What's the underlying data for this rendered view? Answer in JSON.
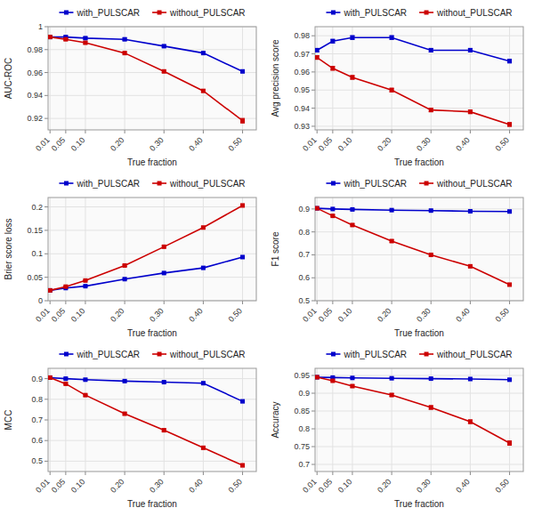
{
  "chart_data": [
    {
      "type": "line",
      "xlabel": "True fraction",
      "ylabel": "AUC-ROC",
      "x": [
        0.01,
        0.05,
        0.1,
        0.2,
        0.3,
        0.4,
        0.5
      ],
      "xlim": [
        0.005,
        0.535
      ],
      "xticks": [
        0.01,
        0.05,
        {
          "value": 0.1,
          "label": "0.10"
        },
        {
          "value": 0.2,
          "label": "0.20"
        },
        {
          "value": 0.3,
          "label": "0.30"
        },
        {
          "value": 0.4,
          "label": "0.40"
        },
        {
          "value": 0.5,
          "label": "0.50"
        }
      ],
      "ylim": [
        0.91,
        1.0
      ],
      "yticks": [
        0.92,
        0.94,
        0.96,
        0.98,
        1
      ],
      "grid": true,
      "legend": "top",
      "series": [
        {
          "name": "with_PULSCAR",
          "color": "#0000cc",
          "marker": "square",
          "values": [
            0.991,
            0.991,
            0.99,
            0.989,
            0.983,
            0.977,
            0.961
          ],
          "errors": [
            0.001,
            0.001,
            0.001,
            0.001,
            0.001,
            0.001,
            0.001
          ]
        },
        {
          "name": "without_PULSCAR",
          "color": "#cc0000",
          "marker": "square",
          "values": [
            0.991,
            0.989,
            0.986,
            0.977,
            0.961,
            0.944,
            0.918
          ],
          "errors": [
            0.001,
            0.001,
            0.001,
            0.001,
            0.001,
            0.001,
            0.002
          ]
        }
      ]
    },
    {
      "type": "line",
      "xlabel": "True fraction",
      "ylabel": "Avg precision score",
      "x": [
        0.01,
        0.05,
        0.1,
        0.2,
        0.3,
        0.4,
        0.5
      ],
      "xlim": [
        0.005,
        0.535
      ],
      "xticks": [
        0.01,
        0.05,
        {
          "value": 0.1,
          "label": "0.10"
        },
        {
          "value": 0.2,
          "label": "0.20"
        },
        {
          "value": 0.3,
          "label": "0.30"
        },
        {
          "value": 0.4,
          "label": "0.40"
        },
        {
          "value": 0.5,
          "label": "0.50"
        }
      ],
      "ylim": [
        0.928,
        0.985
      ],
      "yticks": [
        0.93,
        0.94,
        0.95,
        0.96,
        0.97,
        0.98
      ],
      "grid": true,
      "legend": "top",
      "series": [
        {
          "name": "with_PULSCAR",
          "color": "#0000cc",
          "marker": "square",
          "values": [
            0.972,
            0.977,
            0.979,
            0.979,
            0.972,
            0.972,
            0.966
          ],
          "errors": [
            0.001,
            0.001,
            0.001,
            0.001,
            0.001,
            0.001,
            0.001
          ]
        },
        {
          "name": "without_PULSCAR",
          "color": "#cc0000",
          "marker": "square",
          "values": [
            0.968,
            0.962,
            0.957,
            0.95,
            0.939,
            0.938,
            0.931
          ],
          "errors": [
            0.001,
            0.001,
            0.001,
            0.001,
            0.001,
            0.001,
            0.001
          ]
        }
      ]
    },
    {
      "type": "line",
      "xlabel": "True fraction",
      "ylabel": "Brier score loss",
      "x": [
        0.01,
        0.05,
        0.1,
        0.2,
        0.3,
        0.4,
        0.5
      ],
      "xlim": [
        0.005,
        0.535
      ],
      "xticks": [
        0.01,
        0.05,
        {
          "value": 0.1,
          "label": "0.10"
        },
        {
          "value": 0.2,
          "label": "0.20"
        },
        {
          "value": 0.3,
          "label": "0.30"
        },
        {
          "value": 0.4,
          "label": "0.40"
        },
        {
          "value": 0.5,
          "label": "0.50"
        }
      ],
      "ylim": [
        0.0,
        0.22
      ],
      "yticks": [
        0,
        0.05,
        0.1,
        0.15,
        0.2
      ],
      "grid": true,
      "legend": "top",
      "series": [
        {
          "name": "with_PULSCAR",
          "color": "#0000cc",
          "marker": "square",
          "values": [
            0.022,
            0.027,
            0.031,
            0.046,
            0.059,
            0.07,
            0.093
          ],
          "errors": [
            0.001,
            0.001,
            0.001,
            0.001,
            0.001,
            0.001,
            0.002
          ]
        },
        {
          "name": "without_PULSCAR",
          "color": "#cc0000",
          "marker": "square",
          "values": [
            0.022,
            0.03,
            0.043,
            0.075,
            0.115,
            0.156,
            0.203
          ],
          "errors": [
            0.001,
            0.001,
            0.001,
            0.002,
            0.002,
            0.002,
            0.003
          ]
        }
      ]
    },
    {
      "type": "line",
      "xlabel": "True fraction",
      "ylabel": "F1 score",
      "x": [
        0.01,
        0.05,
        0.1,
        0.2,
        0.3,
        0.4,
        0.5
      ],
      "xlim": [
        0.005,
        0.535
      ],
      "xticks": [
        0.01,
        0.05,
        {
          "value": 0.1,
          "label": "0.10"
        },
        {
          "value": 0.2,
          "label": "0.20"
        },
        {
          "value": 0.3,
          "label": "0.30"
        },
        {
          "value": 0.4,
          "label": "0.40"
        },
        {
          "value": 0.5,
          "label": "0.50"
        }
      ],
      "ylim": [
        0.5,
        0.95
      ],
      "yticks": [
        0.5,
        0.6,
        0.7,
        0.8,
        0.9
      ],
      "grid": true,
      "legend": "top",
      "series": [
        {
          "name": "with_PULSCAR",
          "color": "#0000cc",
          "marker": "square",
          "values": [
            0.903,
            0.9,
            0.898,
            0.895,
            0.893,
            0.89,
            0.889
          ],
          "errors": [
            0.002,
            0.002,
            0.002,
            0.002,
            0.002,
            0.002,
            0.003
          ]
        },
        {
          "name": "without_PULSCAR",
          "color": "#cc0000",
          "marker": "square",
          "values": [
            0.903,
            0.87,
            0.83,
            0.76,
            0.7,
            0.65,
            0.57
          ],
          "errors": [
            0.002,
            0.003,
            0.004,
            0.005,
            0.005,
            0.005,
            0.006
          ]
        }
      ]
    },
    {
      "type": "line",
      "xlabel": "True fraction",
      "ylabel": "MCC",
      "x": [
        0.01,
        0.05,
        0.1,
        0.2,
        0.3,
        0.4,
        0.5
      ],
      "xlim": [
        0.005,
        0.535
      ],
      "xticks": [
        0.01,
        0.05,
        {
          "value": 0.1,
          "label": "0.10"
        },
        {
          "value": 0.2,
          "label": "0.20"
        },
        {
          "value": 0.3,
          "label": "0.30"
        },
        {
          "value": 0.4,
          "label": "0.40"
        },
        {
          "value": 0.5,
          "label": "0.50"
        }
      ],
      "ylim": [
        0.45,
        0.95
      ],
      "yticks": [
        0.5,
        0.6,
        0.7,
        0.8,
        0.9
      ],
      "grid": true,
      "legend": "top",
      "series": [
        {
          "name": "with_PULSCAR",
          "color": "#0000cc",
          "marker": "square",
          "values": [
            0.905,
            0.9,
            0.895,
            0.888,
            0.883,
            0.878,
            0.79
          ],
          "errors": [
            0.002,
            0.002,
            0.002,
            0.002,
            0.002,
            0.002,
            0.003
          ]
        },
        {
          "name": "without_PULSCAR",
          "color": "#cc0000",
          "marker": "square",
          "values": [
            0.905,
            0.875,
            0.82,
            0.73,
            0.65,
            0.565,
            0.48
          ],
          "errors": [
            0.003,
            0.003,
            0.004,
            0.005,
            0.006,
            0.006,
            0.007
          ]
        }
      ]
    },
    {
      "type": "line",
      "xlabel": "True fraction",
      "ylabel": "Accuracy",
      "x": [
        0.01,
        0.05,
        0.1,
        0.2,
        0.3,
        0.4,
        0.5
      ],
      "xlim": [
        0.005,
        0.535
      ],
      "xticks": [
        0.01,
        0.05,
        {
          "value": 0.1,
          "label": "0.10"
        },
        {
          "value": 0.2,
          "label": "0.20"
        },
        {
          "value": 0.3,
          "label": "0.30"
        },
        {
          "value": 0.4,
          "label": "0.40"
        },
        {
          "value": 0.5,
          "label": "0.50"
        }
      ],
      "ylim": [
        0.68,
        0.97
      ],
      "yticks": [
        0.7,
        0.75,
        0.8,
        0.85,
        0.9,
        0.95
      ],
      "grid": true,
      "legend": "top",
      "series": [
        {
          "name": "with_PULSCAR",
          "color": "#0000cc",
          "marker": "square",
          "values": [
            0.945,
            0.944,
            0.943,
            0.942,
            0.941,
            0.94,
            0.938
          ],
          "errors": [
            0.001,
            0.001,
            0.001,
            0.001,
            0.001,
            0.001,
            0.002
          ]
        },
        {
          "name": "without_PULSCAR",
          "color": "#cc0000",
          "marker": "square",
          "values": [
            0.945,
            0.935,
            0.92,
            0.895,
            0.86,
            0.82,
            0.76
          ],
          "errors": [
            0.001,
            0.002,
            0.003,
            0.004,
            0.005,
            0.005,
            0.006
          ]
        }
      ]
    }
  ]
}
